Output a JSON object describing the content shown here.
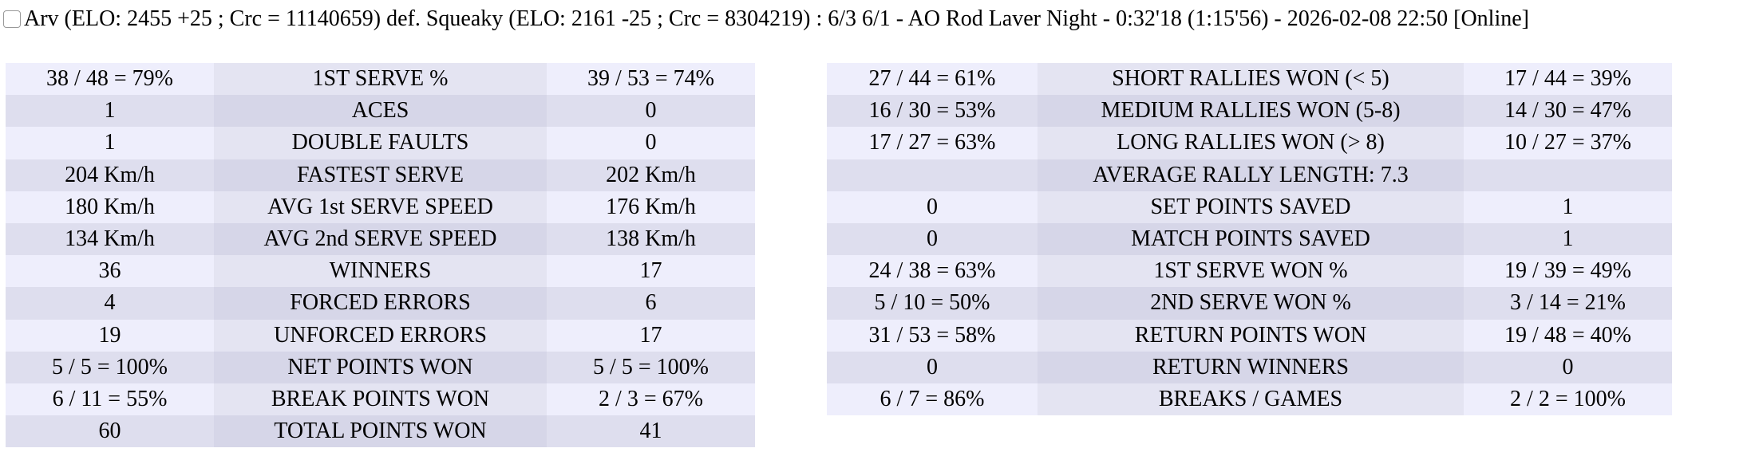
{
  "header": {
    "title": "Arv (ELO: 2455 +25 ; Crc = 11140659) def. Squeaky (ELO: 2161 -25 ; Crc = 8304219) : 6/3 6/1 - AO Rod Laver Night - 0:32'18 (1:15'56) - 2026-02-08 22:50 [Online]"
  },
  "left_table": {
    "rows": [
      [
        "38 / 48 = 79%",
        "1ST SERVE %",
        "39 / 53 = 74%"
      ],
      [
        "1",
        "ACES",
        "0"
      ],
      [
        "1",
        "DOUBLE FAULTS",
        "0"
      ],
      [
        "204 Km/h",
        "FASTEST SERVE",
        "202 Km/h"
      ],
      [
        "180 Km/h",
        "AVG 1st SERVE SPEED",
        "176 Km/h"
      ],
      [
        "134 Km/h",
        "AVG 2nd SERVE SPEED",
        "138 Km/h"
      ],
      [
        "36",
        "WINNERS",
        "17"
      ],
      [
        "4",
        "FORCED ERRORS",
        "6"
      ],
      [
        "19",
        "UNFORCED ERRORS",
        "17"
      ],
      [
        "5 / 5 = 100%",
        "NET POINTS WON",
        "5 / 5 = 100%"
      ],
      [
        "6 / 11 = 55%",
        "BREAK POINTS WON",
        "2 / 3 = 67%"
      ],
      [
        "60",
        "TOTAL POINTS WON",
        "41"
      ]
    ]
  },
  "right_table": {
    "rows": [
      [
        "27 / 44 = 61%",
        "SHORT RALLIES WON (< 5)",
        "17 / 44 = 39%"
      ],
      [
        "16 / 30 = 53%",
        "MEDIUM RALLIES WON (5-8)",
        "14 / 30 = 47%"
      ],
      [
        "17 / 27 = 63%",
        "LONG RALLIES WON (> 8)",
        "10 / 27 = 37%"
      ],
      [
        "AVERAGE RALLY LENGTH: 7.3"
      ],
      [
        "0",
        "SET POINTS SAVED",
        "1"
      ],
      [
        "0",
        "MATCH POINTS SAVED",
        "1"
      ],
      [
        "24 / 38 = 63%",
        "1ST SERVE WON %",
        "19 / 39 = 49%"
      ],
      [
        "5 / 10 = 50%",
        "2ND SERVE WON %",
        "3 / 14 = 21%"
      ],
      [
        "31 / 53 = 58%",
        "RETURN POINTS WON",
        "19 / 48 = 40%"
      ],
      [
        "0",
        "RETURN WINNERS",
        "0"
      ],
      [
        "6 / 7 = 86%",
        "BREAKS / GAMES",
        "2 / 2 = 100%"
      ]
    ]
  }
}
